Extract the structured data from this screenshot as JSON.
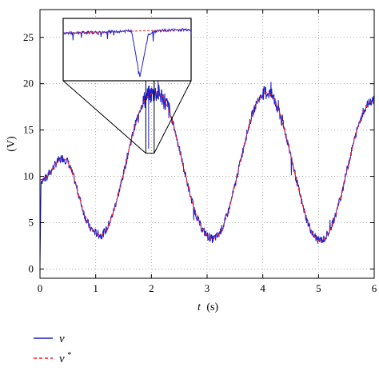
{
  "chart_data": {
    "type": "line",
    "title": "",
    "xlabel_italic": "t",
    "xlabel_unit": "(s)",
    "ylabel": "(V)",
    "xlim": [
      0,
      6
    ],
    "ylim": [
      -1,
      28
    ],
    "xticks": [
      "0",
      "1",
      "2",
      "3",
      "4",
      "5",
      "6"
    ],
    "yticks": [
      "0",
      "5",
      "10",
      "15",
      "20",
      "25"
    ],
    "grid": true,
    "legend_placement": "bottom-left",
    "series": [
      {
        "name": "v",
        "color": "#1f1fcc",
        "style": "solid",
        "x": [
          0.0,
          0.02,
          0.1,
          0.2,
          0.3,
          0.4,
          0.5,
          0.6,
          0.7,
          0.8,
          0.9,
          1.0,
          1.1,
          1.2,
          1.3,
          1.4,
          1.5,
          1.6,
          1.7,
          1.8,
          1.9,
          2.0,
          2.1,
          2.2,
          2.3,
          2.4,
          2.5,
          2.6,
          2.7,
          2.8,
          2.9,
          3.0,
          3.1,
          3.2,
          3.3,
          3.4,
          3.5,
          3.6,
          3.7,
          3.8,
          3.9,
          4.0,
          4.1,
          4.2,
          4.3,
          4.4,
          4.5,
          4.6,
          4.7,
          4.8,
          4.9,
          5.0,
          5.1,
          5.2,
          5.3,
          5.4,
          5.5,
          5.6,
          5.7,
          5.8,
          5.9,
          6.0
        ],
        "y": [
          0.5,
          9.5,
          9.8,
          10.6,
          11.5,
          12.0,
          11.6,
          10.0,
          7.9,
          5.8,
          4.4,
          3.9,
          3.6,
          4.3,
          5.8,
          7.9,
          10.3,
          13.0,
          15.4,
          17.3,
          18.5,
          18.9,
          19.0,
          18.6,
          17.4,
          15.5,
          13.0,
          10.4,
          7.9,
          5.9,
          4.4,
          3.6,
          3.2,
          3.6,
          4.8,
          6.6,
          9.0,
          11.7,
          14.3,
          16.5,
          18.1,
          18.9,
          19.1,
          18.4,
          16.9,
          14.8,
          12.3,
          9.7,
          7.2,
          5.1,
          3.7,
          3.1,
          3.2,
          4.1,
          5.7,
          7.8,
          10.4,
          12.9,
          15.2,
          17.0,
          17.9,
          18.3
        ]
      },
      {
        "name": "v*",
        "color": "#ff1a1a",
        "style": "dashed",
        "x": [
          0.0,
          0.1,
          0.2,
          0.3,
          0.4,
          0.5,
          0.6,
          0.7,
          0.8,
          0.9,
          1.0,
          1.1,
          1.2,
          1.3,
          1.4,
          1.5,
          1.6,
          1.7,
          1.8,
          1.9,
          2.0,
          2.1,
          2.2,
          2.3,
          2.4,
          2.5,
          2.6,
          2.7,
          2.8,
          2.9,
          3.0,
          3.1,
          3.2,
          3.3,
          3.4,
          3.5,
          3.6,
          3.7,
          3.8,
          3.9,
          4.0,
          4.1,
          4.2,
          4.3,
          4.4,
          4.5,
          4.6,
          4.7,
          4.8,
          4.9,
          5.0,
          5.1,
          5.2,
          5.3,
          5.4,
          5.5,
          5.6,
          5.7,
          5.8,
          5.9,
          6.0
        ],
        "y": [
          9.6,
          9.8,
          10.6,
          11.5,
          12.0,
          11.6,
          10.0,
          7.9,
          5.8,
          4.4,
          3.9,
          3.6,
          4.3,
          5.8,
          7.9,
          10.3,
          13.0,
          15.4,
          17.3,
          18.5,
          18.9,
          19.0,
          18.6,
          17.4,
          15.5,
          13.0,
          10.4,
          7.9,
          5.9,
          4.4,
          3.6,
          3.2,
          3.6,
          4.8,
          6.6,
          9.0,
          11.7,
          14.3,
          16.5,
          18.1,
          18.9,
          19.1,
          18.4,
          16.9,
          14.8,
          12.3,
          9.7,
          7.2,
          5.1,
          3.7,
          3.1,
          3.2,
          4.1,
          5.7,
          7.8,
          10.4,
          12.9,
          15.2,
          17.0,
          17.9,
          18.3
        ]
      }
    ],
    "inset": {
      "description_source": "zoom of region near t = 2 s",
      "xlim": [
        1.9,
        2.05
      ],
      "ylim": [
        12.5,
        20.5
      ],
      "x": [
        1.9,
        1.93,
        1.96,
        1.98,
        1.99,
        2.0,
        2.01,
        2.03,
        2.05
      ],
      "y": [
        18.6,
        18.7,
        18.8,
        18.9,
        13.0,
        18.5,
        18.9,
        19.0,
        19.1
      ]
    },
    "legend": [
      {
        "label": "v",
        "superscript": ""
      },
      {
        "label": "v",
        "superscript": "*"
      }
    ]
  }
}
